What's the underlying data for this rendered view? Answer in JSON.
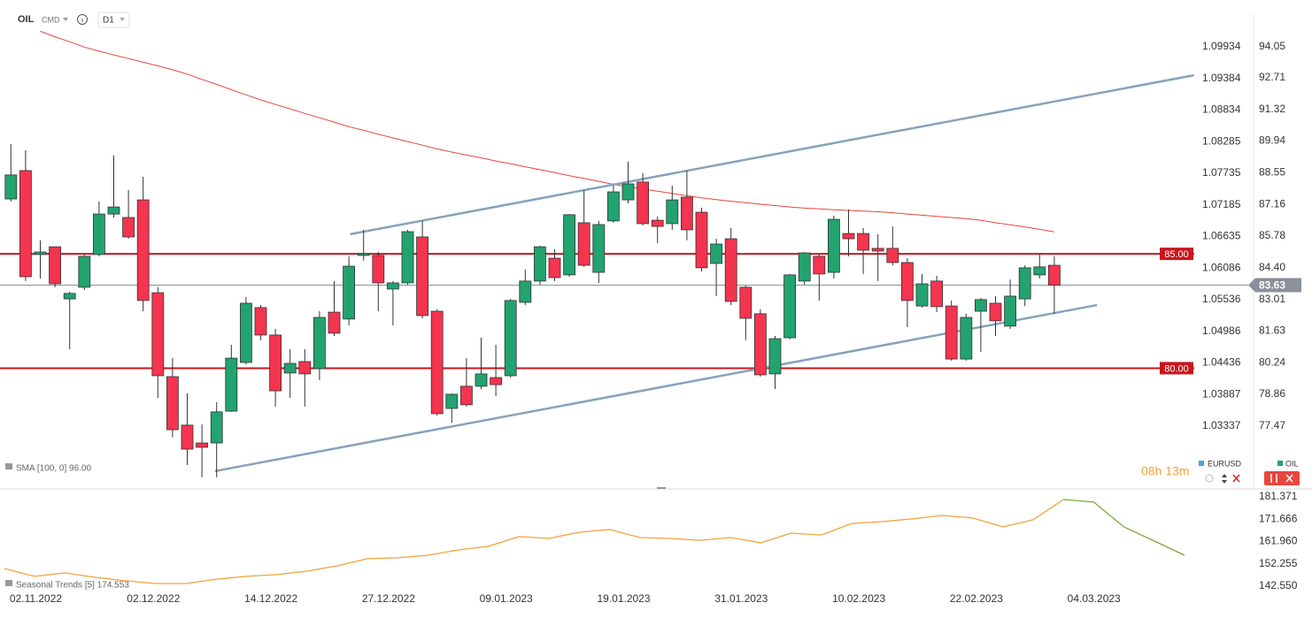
{
  "header": {
    "symbol": "OIL",
    "market": "CMD",
    "interval": "D1"
  },
  "chart_data": [
    {
      "type": "candlestick",
      "categories": [
        null,
        null,
        "02.11.2022",
        null,
        null,
        null,
        null,
        null,
        null,
        null,
        "02.12.2022",
        null,
        null,
        null,
        null,
        null,
        null,
        null,
        "14.12.2022",
        null,
        null,
        null,
        null,
        null,
        null,
        null,
        "27.12.2022",
        null,
        null,
        null,
        null,
        null,
        null,
        null,
        "09.01.2023",
        null,
        null,
        null,
        null,
        null,
        null,
        null,
        "19.01.2023",
        null,
        null,
        null,
        null,
        null,
        null,
        null,
        "31.01.2023",
        null,
        null,
        null,
        null,
        null,
        null,
        null,
        "10.02.2023",
        null,
        null,
        null,
        null,
        null,
        null,
        null,
        "22.02.2023",
        null,
        null,
        null,
        null,
        null,
        null,
        null,
        "04.03.2023",
        null,
        null,
        null,
        null,
        null,
        null
      ],
      "open": [
        87.4,
        88.64,
        84.97,
        85.31,
        83.03,
        83.54,
        84.97,
        86.74,
        86.59,
        87.36,
        83.3,
        79.63,
        77.51,
        76.73,
        76.73,
        78.12,
        80.25,
        82.65,
        81.45,
        79.79,
        80.29,
        79.98,
        82.45,
        82.15,
        84.93,
        84.93,
        83.46,
        83.73,
        85.74,
        82.49,
        78.24,
        79.21,
        79.21,
        79.59,
        79.67,
        82.88,
        83.81,
        84.81,
        84.08,
        86.36,
        84.19,
        86.44,
        87.36,
        88.14,
        86.47,
        86.32,
        87.48,
        86.82,
        84.58,
        85.66,
        83.54,
        82.38,
        79.75,
        81.33,
        83.81,
        84.89,
        84.19,
        85.89,
        85.89,
        85.24,
        85.24,
        84.62,
        82.72,
        83.81,
        82.72,
        80.4,
        82.49,
        82.84,
        81.84,
        83.03,
        84.08,
        84.5,
        null,
        null,
        null,
        null,
        null,
        null,
        null,
        null,
        null
      ],
      "high": [
        89.8,
        89.53,
        85.59,
        85.31,
        83.34,
        84.97,
        87.29,
        89.3,
        87.79,
        88.37,
        83.54,
        80.44,
        78.9,
        77.54,
        78.51,
        81.02,
        83.11,
        82.76,
        81.72,
        80.83,
        80.83,
        82.49,
        83.81,
        84.89,
        86.05,
        85.08,
        83.81,
        86.05,
        86.44,
        82.57,
        78.9,
        80.44,
        81.33,
        81.02,
        83.03,
        84.31,
        85.35,
        85.2,
        86.74,
        87.79,
        86.44,
        87.98,
        89.03,
        88.52,
        86.63,
        87.98,
        88.64,
        87.02,
        85.66,
        86.13,
        83.61,
        82.57,
        81.41,
        84.12,
        85.08,
        84.97,
        86.67,
        86.94,
        86.13,
        85.85,
        86.2,
        84.81,
        84.12,
        84.04,
        82.96,
        82.38,
        83.07,
        83.15,
        83.88,
        84.5,
        85.01,
        84.89,
        null,
        null,
        null,
        null,
        null,
        null,
        null,
        null,
        null
      ],
      "low": [
        87.29,
        83.81,
        83.92,
        83.54,
        80.83,
        83.42,
        84.89,
        86.59,
        85.66,
        82.49,
        78.7,
        76.97,
        75.77,
        75.23,
        75.23,
        78.09,
        80.17,
        81.22,
        78.32,
        78.7,
        78.32,
        79.48,
        81.41,
        81.87,
        84.7,
        82.49,
        81.87,
        83.65,
        82.18,
        77.93,
        77.62,
        78.32,
        79.09,
        78.78,
        79.59,
        82.76,
        83.65,
        83.81,
        84.0,
        84.43,
        83.73,
        86.36,
        87.21,
        86.24,
        85.47,
        86.05,
        85.59,
        84.23,
        83.15,
        82.76,
        81.22,
        79.63,
        79.09,
        81.26,
        83.65,
        82.96,
        83.92,
        84.89,
        84.12,
        83.81,
        84.5,
        81.8,
        82.65,
        82.45,
        80.33,
        80.33,
        80.71,
        81.41,
        81.72,
        82.72,
        83.92,
        82.38,
        null,
        null,
        null,
        null,
        null,
        null,
        null,
        null,
        null
      ],
      "close": [
        88.45,
        84.0,
        85.08,
        83.69,
        83.27,
        84.89,
        86.74,
        87.05,
        85.74,
        82.96,
        79.67,
        77.31,
        76.46,
        76.54,
        78.09,
        80.44,
        82.84,
        81.45,
        79.01,
        80.21,
        79.75,
        82.22,
        81.53,
        84.46,
        85.01,
        83.73,
        83.73,
        85.97,
        82.3,
        78.01,
        78.86,
        78.4,
        79.75,
        79.28,
        82.96,
        83.81,
        85.31,
        83.96,
        86.71,
        84.5,
        86.28,
        87.71,
        88.06,
        86.32,
        86.2,
        87.36,
        86.05,
        84.39,
        85.43,
        82.92,
        82.18,
        79.71,
        81.29,
        84.08,
        85.04,
        84.12,
        86.51,
        85.66,
        85.16,
        85.12,
        84.62,
        82.96,
        83.69,
        82.69,
        80.4,
        82.22,
        83.0,
        82.07,
        83.15,
        84.39,
        84.43,
        83.63,
        null,
        null,
        null,
        null,
        null,
        null,
        null,
        null,
        null
      ],
      "up_color": "#22a36f",
      "down_color": "#f5344f",
      "ylim": [
        75.03,
        95.52
      ],
      "yticks": [
        94.05,
        92.71,
        91.32,
        89.94,
        88.55,
        87.16,
        85.78,
        {
          "value": 84.4,
          "label": "84.40"
        },
        83.01,
        81.63,
        80.24,
        78.86,
        77.47
      ],
      "y2lim": [
        1.02368,
        1.10518
      ],
      "y2ticks": [
        1.09934,
        1.09384,
        1.08834,
        1.08285,
        1.07735,
        1.07185,
        1.06635,
        1.06086,
        1.05536,
        1.04986,
        1.04436,
        1.03887,
        1.03337
      ],
      "y_label": "OIL",
      "y2_label": "EURUSD",
      "grid": false,
      "sma": {
        "label": "SMA [100, 0] 96.00",
        "color": "#e4473c",
        "values": [
          null,
          null,
          94.73,
          94.49,
          94.27,
          94.04,
          93.86,
          93.7,
          93.54,
          93.38,
          93.22,
          93.05,
          92.86,
          92.63,
          92.41,
          92.18,
          91.95,
          91.73,
          91.53,
          91.34,
          91.14,
          90.95,
          90.76,
          90.56,
          90.4,
          90.23,
          90.07,
          89.91,
          89.75,
          89.59,
          89.45,
          89.32,
          89.2,
          89.06,
          88.94,
          88.81,
          88.68,
          88.55,
          88.42,
          88.3,
          88.17,
          88.04,
          87.93,
          87.83,
          87.74,
          87.64,
          87.54,
          87.45,
          87.37,
          87.3,
          87.24,
          87.17,
          87.11,
          87.05,
          87.0,
          86.97,
          86.93,
          86.9,
          86.87,
          86.84,
          86.8,
          86.74,
          86.69,
          86.64,
          86.59,
          86.54,
          86.47,
          86.36,
          86.27,
          86.17,
          86.07,
          85.96,
          null,
          null,
          null,
          null,
          null,
          null,
          null,
          null,
          null
        ]
      },
      "levels": [
        {
          "value": 85,
          "label": "85.00",
          "color": "#c8161d"
        },
        {
          "value": 80,
          "label": "80.00",
          "color": "#c8161d"
        }
      ],
      "last_price": {
        "value": 83.63,
        "label": "83.63",
        "color": "#8c9099"
      },
      "trendlines": [
        {
          "x": [
            23.1,
            80.5
          ],
          "values": [
            85.86,
            92.81
          ],
          "color": "#7ea6cc"
        },
        {
          "x": [
            13.9,
            73.9
          ],
          "values": [
            75.5,
            82.76
          ],
          "color": "#7ea6cc"
        }
      ],
      "countdown": "08h 13m"
    },
    {
      "type": "line",
      "title": "Seasonal Trends [5] 174.553",
      "series": [
        {
          "color": "#f2a23a",
          "values": [
            150.2,
            146.8,
            148.3,
            146.4,
            144.9,
            143.7,
            143.7,
            145.6,
            146.8,
            147.6,
            149.1,
            151.4,
            154.5,
            154.9,
            156.0,
            158.3,
            159.9,
            164.1,
            163.3,
            166.0,
            167.2,
            163.7,
            163.3,
            162.5,
            163.7,
            161.4,
            165.6,
            164.8,
            169.8,
            170.6,
            171.8,
            173.3,
            172.2,
            168.3,
            171.4,
            180.2,
            null,
            null,
            null,
            null
          ]
        },
        {
          "color": "#7aab35",
          "values": [
            null,
            null,
            null,
            null,
            null,
            null,
            null,
            null,
            null,
            null,
            null,
            null,
            null,
            null,
            null,
            null,
            null,
            null,
            null,
            null,
            null,
            null,
            null,
            null,
            null,
            null,
            null,
            null,
            null,
            null,
            null,
            null,
            null,
            null,
            null,
            180.2,
            179.1,
            168.3,
            162.2,
            156.0
          ]
        }
      ],
      "ylim": [
        138.71,
        184.06
      ],
      "yticks": [
        181.371,
        171.666,
        {
          "value": 161.96,
          "label": "161.960"
        },
        152.255,
        {
          "value": 142.55,
          "label": "142.550"
        }
      ]
    }
  ]
}
